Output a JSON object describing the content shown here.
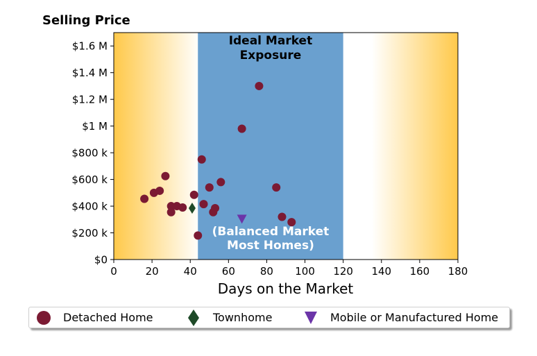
{
  "chart_data": {
    "type": "scatter",
    "title": "Selling Price",
    "xlabel": "Days on the Market",
    "ylabel": "",
    "xlim": [
      0,
      180
    ],
    "ylim": [
      0,
      1700000
    ],
    "x_ticks": [
      0,
      20,
      40,
      60,
      80,
      100,
      120,
      140,
      160,
      180
    ],
    "x_tick_labels": [
      "0",
      "20",
      "40",
      "60",
      "80",
      "100",
      "120",
      "140",
      "160",
      "180"
    ],
    "y_ticks": [
      0,
      200000,
      400000,
      600000,
      800000,
      1000000,
      1200000,
      1400000,
      1600000
    ],
    "y_tick_labels": [
      "$0",
      "$200 k",
      "$400 k",
      "$600 k",
      "$800 k",
      "$1 M",
      "$1.2 M",
      "$1.4 M",
      "$1.6 M"
    ],
    "shaded_region": {
      "x_range": [
        44,
        120
      ],
      "color": "#6aa0cf",
      "label": "Ideal Market Exposure",
      "sublabel": "(Balanced Market Most Homes)"
    },
    "background_gradient": {
      "edge_color": "#ffc94a",
      "center_color": "#ffffff"
    },
    "legend_position": "bottom-center",
    "series": [
      {
        "name": "Detached Home",
        "marker": "circle",
        "color": "#7b1a33",
        "points": [
          [
            16,
            455000
          ],
          [
            21,
            500000
          ],
          [
            24,
            515000
          ],
          [
            27,
            625000
          ],
          [
            30,
            400000
          ],
          [
            30,
            355000
          ],
          [
            33,
            400000
          ],
          [
            36,
            390000
          ],
          [
            42,
            485000
          ],
          [
            44,
            180000
          ],
          [
            46,
            750000
          ],
          [
            47,
            415000
          ],
          [
            50,
            540000
          ],
          [
            52,
            355000
          ],
          [
            53,
            385000
          ],
          [
            56,
            580000
          ],
          [
            67,
            980000
          ],
          [
            76,
            1300000
          ],
          [
            85,
            540000
          ],
          [
            88,
            320000
          ],
          [
            93,
            280000
          ]
        ]
      },
      {
        "name": "Townhome",
        "marker": "diamond",
        "color": "#1e4a28",
        "points": [
          [
            41,
            385000
          ]
        ]
      },
      {
        "name": "Mobile or Manufactured Home",
        "marker": "triangle-down",
        "color": "#6b35a8",
        "points": [
          [
            67,
            305000
          ]
        ]
      }
    ]
  }
}
